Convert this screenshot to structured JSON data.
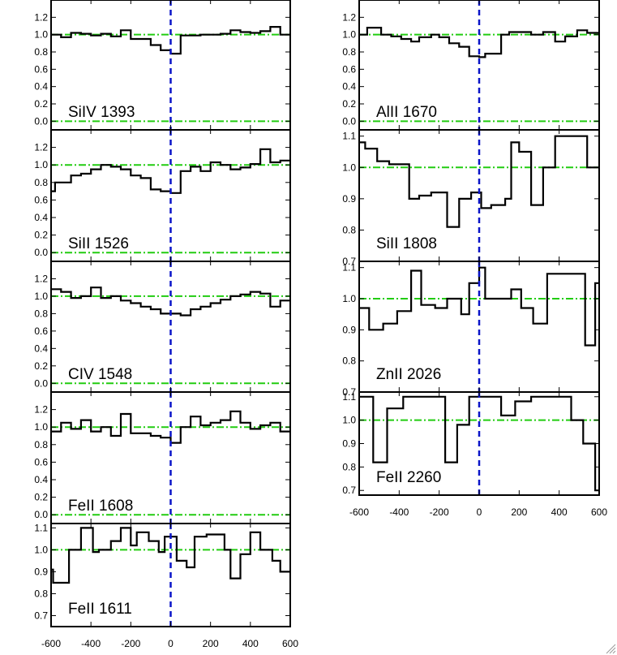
{
  "chart_data": [
    {
      "type": "line",
      "ion": "SiIV 1393",
      "xlim": [
        -600,
        600
      ],
      "ylim": [
        -0.1,
        1.4
      ],
      "yticks": [
        "0.0",
        "0.2",
        "0.4",
        "0.6",
        "0.8",
        "1.0",
        "1.2"
      ],
      "ytick_values": [
        0.0,
        0.2,
        0.4,
        0.6,
        0.8,
        1.0,
        1.2
      ],
      "continuum": 1.0,
      "zero_level": 0.0,
      "steps": {
        "x": [
          -600,
          -550,
          -500,
          -450,
          -400,
          -350,
          -300,
          -250,
          -200,
          -150,
          -100,
          -50,
          0,
          50,
          100,
          150,
          200,
          250,
          300,
          350,
          400,
          450,
          500,
          550
        ],
        "y": [
          1.0,
          0.97,
          1.02,
          1.01,
          0.99,
          1.01,
          0.98,
          1.05,
          0.95,
          0.95,
          0.88,
          0.82,
          0.78,
          0.99,
          0.99,
          1.0,
          1.0,
          1.01,
          1.05,
          1.03,
          1.02,
          1.04,
          1.09,
          1.0
        ]
      }
    },
    {
      "type": "line",
      "ion": "SiII 1526",
      "xlim": [
        -600,
        600
      ],
      "ylim": [
        -0.1,
        1.4
      ],
      "yticks": [
        "0.0",
        "0.2",
        "0.4",
        "0.6",
        "0.8",
        "1.0",
        "1.2"
      ],
      "ytick_values": [
        0.0,
        0.2,
        0.4,
        0.6,
        0.8,
        1.0,
        1.2
      ],
      "continuum": 1.0,
      "zero_level": 0.0,
      "steps": {
        "x": [
          -600,
          -580,
          -500,
          -450,
          -400,
          -350,
          -300,
          -250,
          -200,
          -150,
          -100,
          -50,
          0,
          50,
          100,
          150,
          200,
          250,
          300,
          350,
          400,
          450,
          500,
          550
        ],
        "y": [
          0.7,
          0.8,
          0.88,
          0.9,
          0.95,
          1.0,
          0.98,
          0.95,
          0.88,
          0.85,
          0.72,
          0.7,
          0.68,
          0.93,
          0.98,
          0.93,
          1.03,
          1.0,
          0.95,
          0.97,
          1.01,
          1.18,
          1.03,
          1.05
        ]
      }
    },
    {
      "type": "line",
      "ion": "CIV 1548",
      "xlim": [
        -600,
        600
      ],
      "ylim": [
        -0.1,
        1.4
      ],
      "yticks": [
        "0.0",
        "0.2",
        "0.4",
        "0.6",
        "0.8",
        "1.0",
        "1.2"
      ],
      "ytick_values": [
        0.0,
        0.2,
        0.4,
        0.6,
        0.8,
        1.0,
        1.2
      ],
      "continuum": 1.0,
      "zero_level": 0.0,
      "steps": {
        "x": [
          -600,
          -550,
          -500,
          -450,
          -400,
          -350,
          -300,
          -250,
          -200,
          -150,
          -100,
          -50,
          0,
          50,
          100,
          150,
          200,
          250,
          300,
          350,
          400,
          450,
          500,
          550
        ],
        "y": [
          1.08,
          1.05,
          0.98,
          1.0,
          1.1,
          0.98,
          1.0,
          0.95,
          0.92,
          0.88,
          0.85,
          0.8,
          0.8,
          0.78,
          0.85,
          0.88,
          0.92,
          0.96,
          1.0,
          1.02,
          1.05,
          1.03,
          0.88,
          0.95
        ]
      }
    },
    {
      "type": "line",
      "ion": "FeII 1608",
      "xlim": [
        -600,
        600
      ],
      "ylim": [
        -0.1,
        1.4
      ],
      "yticks": [
        "0.0",
        "0.2",
        "0.4",
        "0.6",
        "0.8",
        "1.0",
        "1.2"
      ],
      "ytick_values": [
        0.0,
        0.2,
        0.4,
        0.6,
        0.8,
        1.0,
        1.2
      ],
      "continuum": 1.0,
      "zero_level": 0.0,
      "steps": {
        "x": [
          -600,
          -550,
          -500,
          -450,
          -400,
          -350,
          -300,
          -250,
          -200,
          -150,
          -100,
          -50,
          0,
          50,
          100,
          150,
          200,
          250,
          300,
          350,
          400,
          450,
          500,
          550
        ],
        "y": [
          0.95,
          1.05,
          0.98,
          1.08,
          0.95,
          1.0,
          0.9,
          1.15,
          0.93,
          0.93,
          0.9,
          0.88,
          0.82,
          1.0,
          1.12,
          1.02,
          1.05,
          1.08,
          1.18,
          1.05,
          0.98,
          1.02,
          1.05,
          0.95
        ]
      }
    },
    {
      "type": "line",
      "ion": "FeII 1611",
      "xlim": [
        -600,
        600
      ],
      "ylim": [
        0.65,
        1.12
      ],
      "yticks": [
        "0.7",
        "0.8",
        "0.9",
        "1.0",
        "1.1"
      ],
      "ytick_values": [
        0.7,
        0.8,
        0.9,
        1.0,
        1.1
      ],
      "continuum": 1.0,
      "steps": {
        "x": [
          -600,
          -590,
          -510,
          -450,
          -390,
          -360,
          -300,
          -250,
          -200,
          -170,
          -110,
          -60,
          -30,
          30,
          80,
          120,
          180,
          270,
          300,
          350,
          400,
          450,
          510,
          550
        ],
        "y": [
          0.91,
          0.85,
          1.0,
          1.1,
          0.99,
          1.0,
          1.04,
          1.1,
          1.02,
          1.08,
          1.04,
          0.99,
          1.06,
          0.95,
          0.92,
          1.06,
          1.07,
          1.0,
          0.87,
          0.98,
          1.08,
          1.0,
          0.95,
          0.9
        ]
      }
    },
    {
      "type": "line",
      "ion": "AlII 1670",
      "xlim": [
        -600,
        600
      ],
      "ylim": [
        -0.1,
        1.4
      ],
      "yticks": [
        "0.0",
        "0.2",
        "0.4",
        "0.6",
        "0.8",
        "1.0",
        "1.2"
      ],
      "ytick_values": [
        0.0,
        0.2,
        0.4,
        0.6,
        0.8,
        1.0,
        1.2
      ],
      "continuum": 1.0,
      "zero_level": 0.0,
      "steps": {
        "x": [
          -600,
          -560,
          -490,
          -440,
          -390,
          -340,
          -300,
          -240,
          -200,
          -150,
          -100,
          -50,
          0,
          30,
          110,
          150,
          200,
          260,
          320,
          380,
          430,
          490,
          540
        ],
        "y": [
          1.0,
          1.08,
          1.0,
          0.98,
          0.95,
          0.92,
          0.97,
          1.0,
          0.97,
          0.9,
          0.86,
          0.75,
          0.74,
          0.78,
          1.0,
          1.03,
          1.03,
          1.0,
          1.03,
          0.92,
          0.98,
          1.05,
          1.02
        ]
      }
    },
    {
      "type": "line",
      "ion": "SiII 1808",
      "xlim": [
        -600,
        600
      ],
      "ylim": [
        0.7,
        1.12
      ],
      "yticks": [
        "0.7",
        "0.8",
        "0.9",
        "1.0",
        "1.1"
      ],
      "ytick_values": [
        0.7,
        0.8,
        0.9,
        1.0,
        1.1
      ],
      "continuum": 1.0,
      "steps": {
        "x": [
          -600,
          -570,
          -510,
          -450,
          -350,
          -300,
          -240,
          -160,
          -100,
          -40,
          10,
          60,
          130,
          160,
          200,
          260,
          320,
          380,
          480,
          540
        ],
        "y": [
          1.08,
          1.06,
          1.02,
          1.01,
          0.9,
          0.91,
          0.92,
          0.81,
          0.9,
          0.92,
          0.87,
          0.88,
          0.9,
          1.08,
          1.05,
          0.88,
          1.0,
          1.1,
          1.1,
          1.0
        ]
      }
    },
    {
      "type": "line",
      "ion": "ZnII 2026",
      "xlim": [
        -600,
        600
      ],
      "ylim": [
        0.7,
        1.12
      ],
      "yticks": [
        "0.7",
        "0.8",
        "0.9",
        "1.0",
        "1.1"
      ],
      "ytick_values": [
        0.7,
        0.8,
        0.9,
        1.0,
        1.1
      ],
      "continuum": 1.0,
      "steps": {
        "x": [
          -600,
          -550,
          -480,
          -410,
          -340,
          -290,
          -220,
          -160,
          -90,
          -50,
          0,
          30,
          100,
          160,
          210,
          270,
          340,
          400,
          460,
          530,
          580
        ],
        "y": [
          0.97,
          0.9,
          0.92,
          0.96,
          1.09,
          0.98,
          0.97,
          1.0,
          0.95,
          1.05,
          1.1,
          1.0,
          1.0,
          1.03,
          0.97,
          0.92,
          1.08,
          1.08,
          1.08,
          0.85,
          1.05
        ]
      }
    },
    {
      "type": "line",
      "ion": "FeII 2260",
      "xlim": [
        -600,
        600
      ],
      "ylim": [
        0.68,
        1.12
      ],
      "yticks": [
        "0.7",
        "0.8",
        "0.9",
        "1.0",
        "1.1"
      ],
      "ytick_values": [
        0.7,
        0.8,
        0.9,
        1.0,
        1.1
      ],
      "continuum": 1.0,
      "steps": {
        "x": [
          -600,
          -530,
          -460,
          -380,
          -240,
          -170,
          -110,
          -50,
          40,
          110,
          180,
          260,
          380,
          460,
          520,
          580
        ],
        "y": [
          1.1,
          0.82,
          1.05,
          1.1,
          1.1,
          0.82,
          0.98,
          1.1,
          1.1,
          1.02,
          1.08,
          1.1,
          1.1,
          1.0,
          0.9,
          0.7
        ]
      }
    }
  ],
  "colors": {
    "frame": "#000000",
    "spectrum": "#000000",
    "velocity_zero": "#0a14c8",
    "reference": "#22cc11"
  },
  "xticks": [
    "-600",
    "-400",
    "-200",
    "0",
    "200",
    "400",
    "600"
  ],
  "xtick_values": [
    -600,
    -400,
    -200,
    0,
    200,
    400,
    600
  ]
}
